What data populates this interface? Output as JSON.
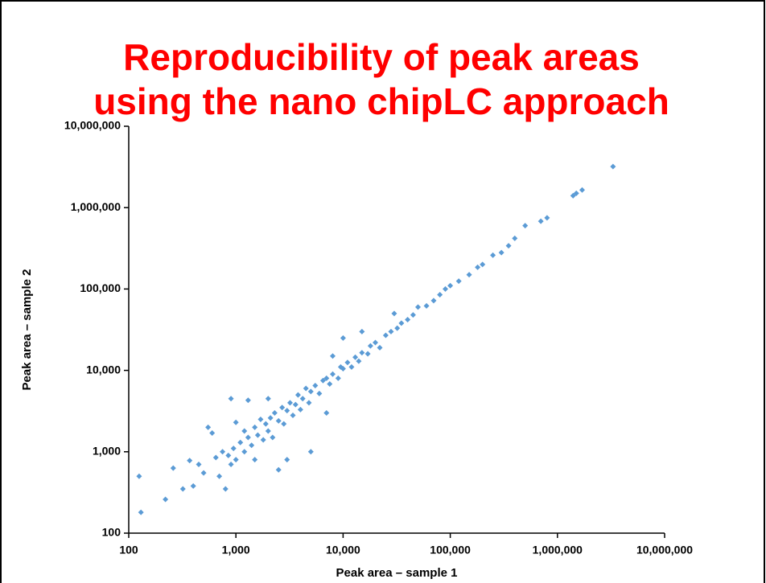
{
  "chart_data": {
    "type": "scatter",
    "title_lines": [
      "Reproducibility of peak areas",
      "using the nano chipLC approach"
    ],
    "x_label": "Peak area – sample 1",
    "y_label": "Peak area – sample 2",
    "log_scale": true,
    "color": "#5b9bd5",
    "xlim": [
      100,
      10000000
    ],
    "ylim": [
      100,
      10000000
    ],
    "xticks": [
      100,
      {
        "value": 1000,
        "label": "1,000"
      },
      {
        "value": 10000,
        "label": "10,000"
      },
      {
        "value": 100000,
        "label": "100,000"
      },
      {
        "value": 1000000,
        "label": "1,000,000"
      },
      {
        "value": 10000000,
        "label": "10,000,000"
      }
    ],
    "yticks": [
      100,
      {
        "value": 1000,
        "label": "1,000"
      },
      {
        "value": 10000,
        "label": "10,000"
      },
      {
        "value": 100000,
        "label": "100,000"
      },
      {
        "value": 1000000,
        "label": "1,000,000"
      },
      {
        "value": 10000000,
        "label": "10,000,000"
      }
    ],
    "x": [
      125,
      130,
      220,
      260,
      320,
      370,
      400,
      450,
      500,
      550,
      600,
      650,
      700,
      750,
      800,
      850,
      900,
      900,
      950,
      1000,
      1000,
      1100,
      1200,
      1200,
      1300,
      1300,
      1400,
      1500,
      1500,
      1600,
      1700,
      1800,
      1900,
      2000,
      2000,
      2100,
      2200,
      2300,
      2500,
      2500,
      2700,
      2800,
      3000,
      3000,
      3200,
      3400,
      3600,
      3800,
      4000,
      4200,
      4500,
      4800,
      5000,
      5000,
      5500,
      6000,
      6500,
      7000,
      7000,
      7500,
      8000,
      8000,
      9000,
      9500,
      10000,
      10000,
      11000,
      12000,
      13000,
      14000,
      15000,
      15000,
      17000,
      18000,
      20000,
      22000,
      25000,
      28000,
      30000,
      32000,
      35000,
      40000,
      45000,
      50000,
      60000,
      70000,
      80000,
      90000,
      100000,
      120000,
      150000,
      180000,
      200000,
      250000,
      300000,
      350000,
      400000,
      500000,
      700000,
      800000,
      1400000,
      1500000,
      1700000,
      3300000
    ],
    "y": [
      500,
      180,
      260,
      630,
      350,
      780,
      380,
      700,
      550,
      2000,
      1700,
      850,
      500,
      1000,
      350,
      900,
      4500,
      700,
      1100,
      2300,
      800,
      1300,
      1000,
      1800,
      4300,
      1500,
      1200,
      800,
      2000,
      1600,
      2500,
      1400,
      2200,
      4500,
      1800,
      2600,
      1500,
      3000,
      600,
      2400,
      3500,
      2200,
      800,
      3200,
      4000,
      2800,
      3800,
      5000,
      3300,
      4500,
      6000,
      4000,
      1000,
      5500,
      6500,
      5200,
      7500,
      3000,
      8000,
      6800,
      15000,
      9000,
      8000,
      11000,
      25000,
      10500,
      12500,
      11000,
      14500,
      13000,
      30000,
      16500,
      16000,
      20000,
      22000,
      19000,
      27000,
      30000,
      50000,
      33000,
      38000,
      42000,
      48000,
      60000,
      62000,
      72000,
      85000,
      100000,
      110000,
      125000,
      150000,
      185000,
      200000,
      260000,
      280000,
      340000,
      420000,
      600000,
      680000,
      750000,
      1400000,
      1500000,
      1650000,
      3200000
    ]
  }
}
